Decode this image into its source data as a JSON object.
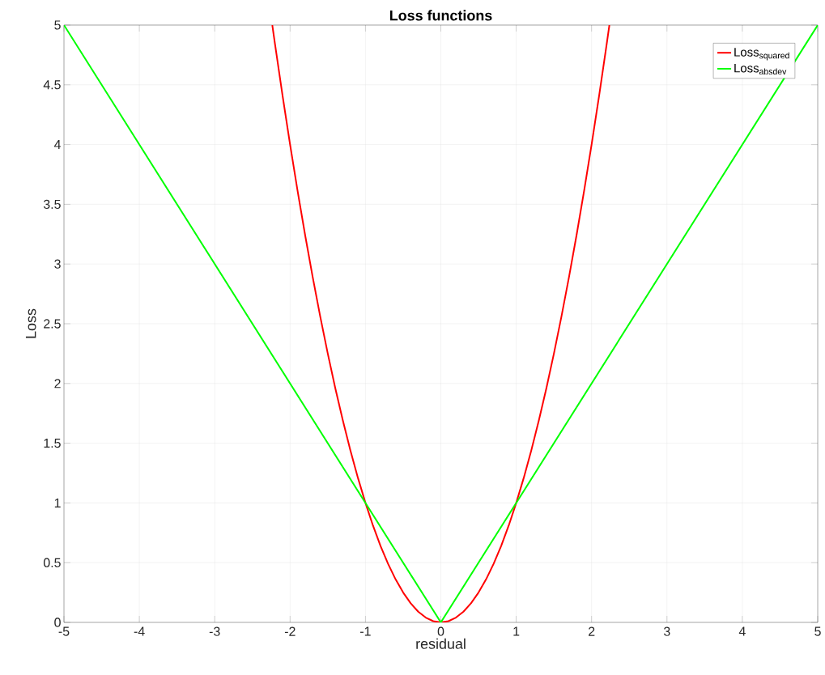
{
  "chart_data": {
    "type": "line",
    "title": "Loss functions",
    "xlabel": "residual",
    "ylabel": "Loss",
    "series": [
      {
        "name": "Loss$_{squared}$",
        "color": "#ff0000",
        "x": [
          -2.236,
          -2.2,
          -2.1,
          -2.0,
          -1.9,
          -1.8,
          -1.7,
          -1.6,
          -1.5,
          -1.4,
          -1.3,
          -1.2,
          -1.1,
          -1.0,
          -0.9,
          -0.8,
          -0.7,
          -0.6,
          -0.5,
          -0.4,
          -0.3,
          -0.2,
          -0.1,
          0,
          0.1,
          0.2,
          0.3,
          0.4,
          0.5,
          0.6,
          0.7,
          0.8,
          0.9,
          1.0,
          1.1,
          1.2,
          1.3,
          1.4,
          1.5,
          1.6,
          1.7,
          1.8,
          1.9,
          2.0,
          2.1,
          2.2,
          2.236
        ],
        "values": [
          5,
          4.84,
          4.41,
          4.0,
          3.61,
          3.24,
          2.89,
          2.56,
          2.25,
          1.96,
          1.69,
          1.44,
          1.21,
          1.0,
          0.81,
          0.64,
          0.49,
          0.36,
          0.25,
          0.16,
          0.09,
          0.04,
          0.01,
          0,
          0.01,
          0.04,
          0.09,
          0.16,
          0.25,
          0.36,
          0.49,
          0.64,
          0.81,
          1.0,
          1.21,
          1.44,
          1.69,
          1.96,
          2.25,
          2.56,
          2.89,
          3.24,
          3.61,
          4.0,
          4.41,
          4.84,
          5
        ]
      },
      {
        "name": "Loss$_{absdev}$",
        "color": "#00ff00",
        "x": [
          -5,
          0,
          5
        ],
        "values": [
          5,
          0,
          5
        ]
      }
    ],
    "xlim": [
      -5,
      5
    ],
    "ylim": [
      0,
      5
    ],
    "xticks": [
      -5,
      -4,
      -3,
      -2,
      -1,
      0,
      1,
      2,
      3,
      4,
      5
    ],
    "yticks": [
      0,
      0.5,
      1,
      1.5,
      2,
      2.5,
      3,
      3.5,
      4,
      4.5,
      5
    ],
    "grid": true,
    "legend": "top right"
  }
}
